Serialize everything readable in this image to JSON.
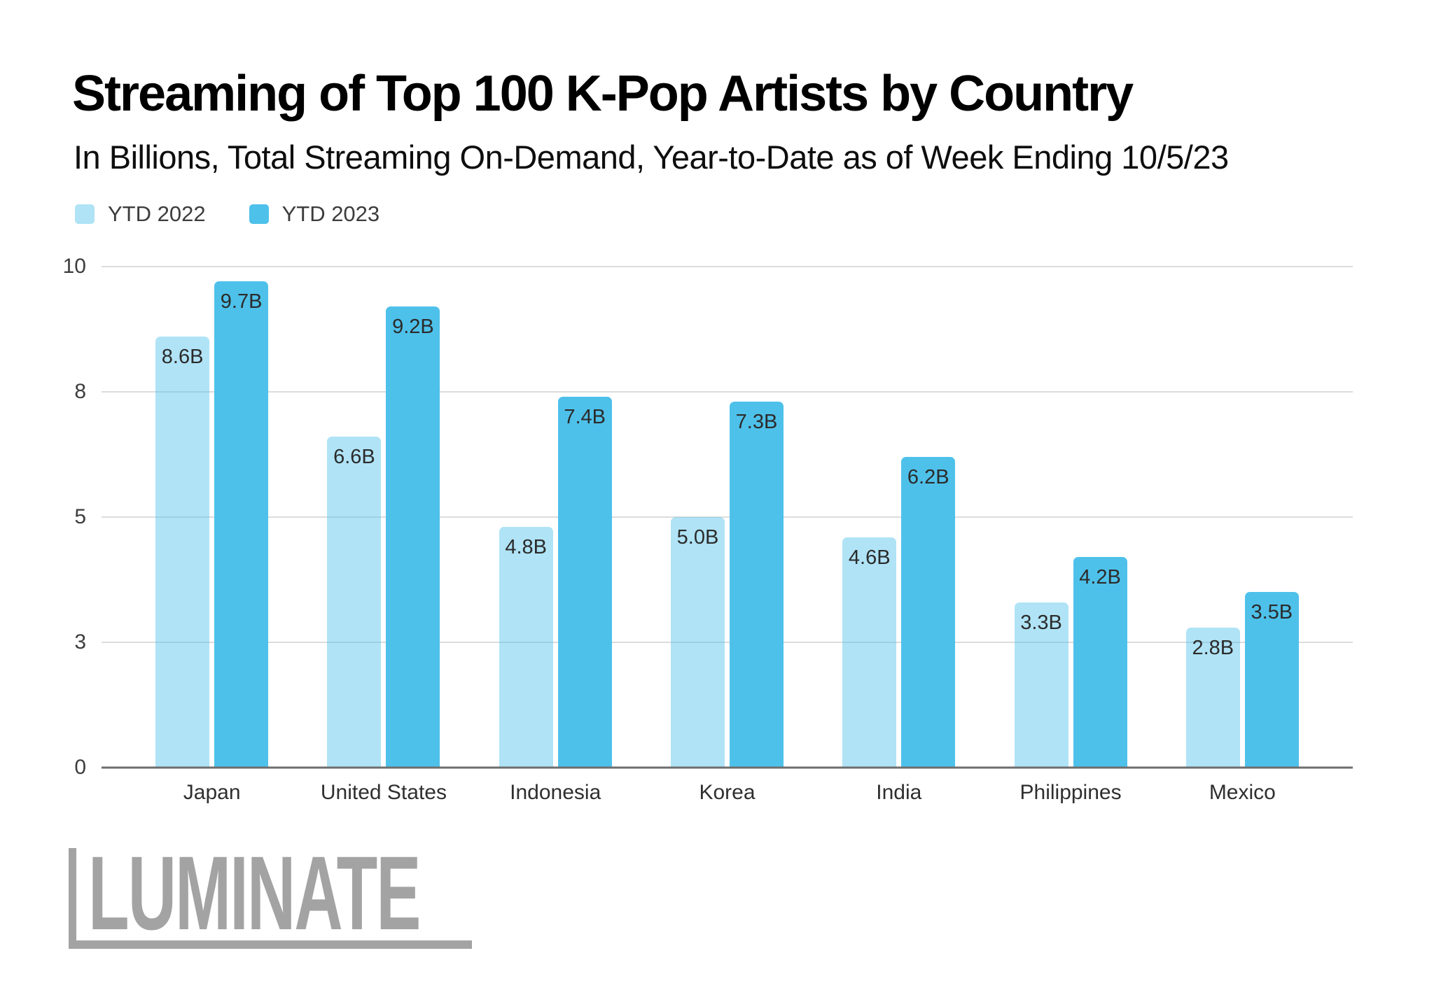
{
  "chart_data": {
    "type": "bar",
    "title": "Streaming of Top 100 K-Pop Artists by Country",
    "subtitle": "In Billions, Total Streaming On-Demand, Year-to-Date as of Week Ending 10/5/23",
    "categories": [
      "Japan",
      "United States",
      "Indonesia",
      "Korea",
      "India",
      "Philippines",
      "Mexico"
    ],
    "series": [
      {
        "name": "YTD 2022",
        "color": "#AFE3F5",
        "fill": "rgba(79,193,235,0.45)",
        "values": [
          8.6,
          6.6,
          4.8,
          5.0,
          4.6,
          3.3,
          2.8
        ],
        "labels": [
          "8.6B",
          "6.6B",
          "4.8B",
          "5.0B",
          "4.6B",
          "3.3B",
          "2.8B"
        ]
      },
      {
        "name": "YTD 2023",
        "color": "#4EC1EA",
        "fill": "#4EC1EA",
        "values": [
          9.7,
          9.2,
          7.4,
          7.3,
          6.2,
          4.2,
          3.5
        ],
        "labels": [
          "9.7B",
          "9.2B",
          "7.4B",
          "7.3B",
          "6.2B",
          "4.2B",
          "3.5B"
        ]
      }
    ],
    "xlabel": "",
    "ylabel": "",
    "ylim": [
      0,
      10
    ],
    "yticks": [
      {
        "value": 0,
        "label": "0"
      },
      {
        "value": 2.5,
        "label": "3"
      },
      {
        "value": 5,
        "label": "5"
      },
      {
        "value": 7.5,
        "label": "8"
      },
      {
        "value": 10,
        "label": "10"
      }
    ],
    "grid": true,
    "legend_position": "top-left"
  },
  "colors": {
    "axis_line": "#6E6E6E",
    "gridline": "#DCDCDC",
    "text": "#2F2F2F",
    "logo_gray": "#A3A3A3"
  },
  "logo": {
    "text": "LUMINATE"
  }
}
